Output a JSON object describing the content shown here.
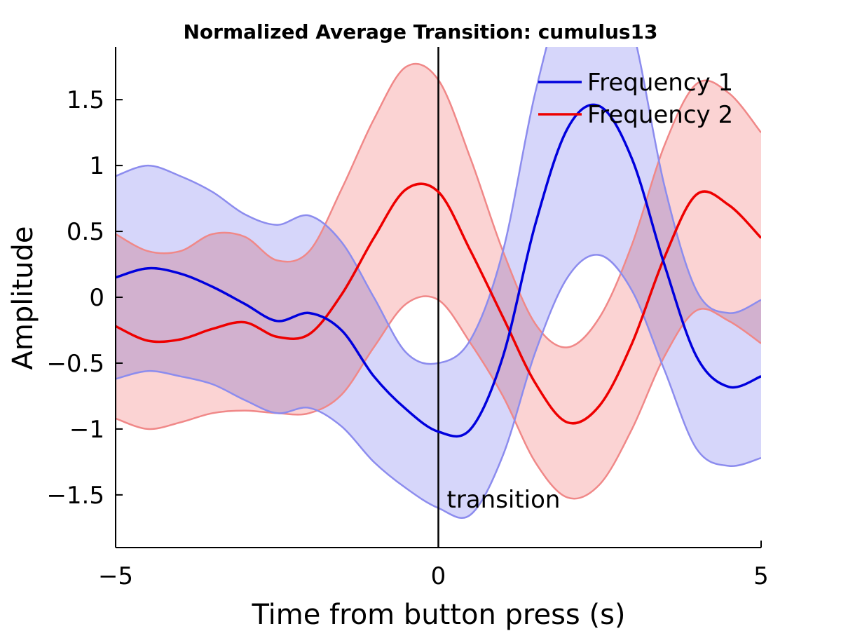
{
  "chart_data": {
    "type": "line",
    "title": "Normalized Average Transition: cumulus13",
    "xlabel": "Time from button press (s)",
    "ylabel": "Amplitude",
    "xlim": [
      -5,
      5
    ],
    "ylim": [
      -1.9,
      1.9
    ],
    "x_ticks": [
      -5,
      0,
      5
    ],
    "x_tick_labels": [
      "−5",
      "0",
      "5"
    ],
    "y_ticks": [
      -1.5,
      -1,
      -0.5,
      0,
      0.5,
      1,
      1.5
    ],
    "y_tick_labels": [
      "−1.5",
      "−1",
      "−0.5",
      "0",
      "0.5",
      "1",
      "1.5"
    ],
    "grid": false,
    "legend_position": "top-right",
    "vline": {
      "x": 0,
      "label": "transition",
      "color": "#000000"
    },
    "x": [
      -5,
      -4.5,
      -4,
      -3.5,
      -3,
      -2.5,
      -2,
      -1.5,
      -1,
      -0.5,
      0,
      0.5,
      1,
      1.5,
      2,
      2.5,
      3,
      3.5,
      4,
      4.5,
      5
    ],
    "series": [
      {
        "name": "Frequency 1",
        "color": "#0000dd",
        "band_fill": "#d6d6fa",
        "band_edge": "#8c8cee",
        "mean": [
          0.15,
          0.22,
          0.18,
          0.08,
          -0.05,
          -0.18,
          -0.12,
          -0.25,
          -0.6,
          -0.85,
          -1.02,
          -1.0,
          -0.45,
          0.55,
          1.28,
          1.45,
          1.05,
          0.25,
          -0.45,
          -0.68,
          -0.6
        ],
        "upper": [
          0.92,
          1.0,
          0.92,
          0.8,
          0.63,
          0.55,
          0.62,
          0.42,
          0.0,
          -0.42,
          -0.5,
          -0.32,
          0.35,
          1.55,
          2.4,
          2.6,
          2.05,
          0.85,
          0.05,
          -0.12,
          -0.02
        ],
        "lower": [
          -0.62,
          -0.56,
          -0.6,
          -0.66,
          -0.78,
          -0.88,
          -0.84,
          -0.98,
          -1.25,
          -1.45,
          -1.6,
          -1.65,
          -1.2,
          -0.42,
          0.15,
          0.32,
          0.05,
          -0.55,
          -1.15,
          -1.28,
          -1.22
        ]
      },
      {
        "name": "Frequency 2",
        "color": "#ee0000",
        "band_fill": "#fbd3d3",
        "band_edge": "#f08888",
        "mean": [
          -0.22,
          -0.33,
          -0.32,
          -0.24,
          -0.19,
          -0.3,
          -0.28,
          0.02,
          0.45,
          0.82,
          0.8,
          0.35,
          -0.15,
          -0.65,
          -0.95,
          -0.82,
          -0.35,
          0.3,
          0.78,
          0.7,
          0.45
        ],
        "upper": [
          0.48,
          0.35,
          0.35,
          0.48,
          0.46,
          0.28,
          0.35,
          0.82,
          1.35,
          1.75,
          1.65,
          1.05,
          0.35,
          -0.2,
          -0.38,
          -0.15,
          0.4,
          1.15,
          1.62,
          1.55,
          1.25
        ],
        "lower": [
          -0.92,
          -1.0,
          -0.95,
          -0.88,
          -0.86,
          -0.88,
          -0.88,
          -0.74,
          -0.38,
          -0.05,
          -0.02,
          -0.35,
          -0.75,
          -1.25,
          -1.52,
          -1.42,
          -1.0,
          -0.45,
          -0.1,
          -0.18,
          -0.35
        ]
      }
    ]
  }
}
